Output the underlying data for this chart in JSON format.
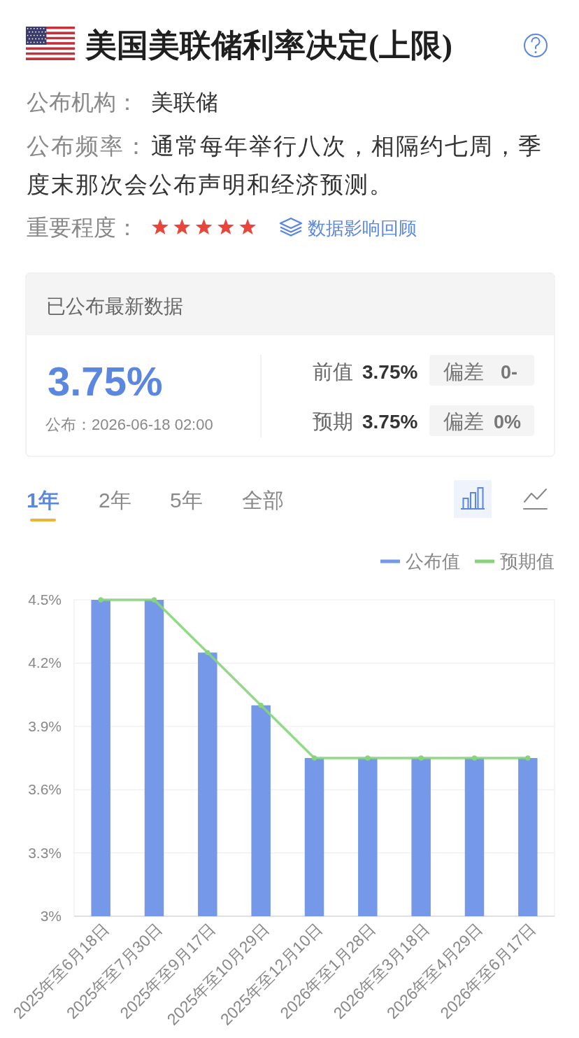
{
  "chart_data": [
    {
      "type": "other",
      "title": "美国美联储利率决定(上限)",
      "annotations": [
        "公布机构：",
        "美联储",
        "公布频率：通常每年举行八次，相隔约七周，季度末那次会公布声明和经济预测。",
        "重要程度：",
        "数据影响回顾",
        "已公布最新数据",
        "3.75%",
        "公布：2026-06-18 02:00",
        "前值",
        "3.75%",
        "偏差",
        "0-",
        "预期",
        "3.75%",
        "偏差",
        "0%",
        "1年",
        "2年",
        "5年",
        "全部"
      ]
    },
    {
      "type": "bar",
      "categories": [
        "2025年至6月18日",
        "2025年至7月30日",
        "2025年至9月17日",
        "2025年至10月29日",
        "2025年至12月10日",
        "2026年至1月28日",
        "2026年至3月18日",
        "2026年至4月29日",
        "2026年至6月17日"
      ],
      "series": [
        {
          "name": "公布值",
          "type": "bar",
          "color": "#7599e8",
          "values": [
            4.5,
            4.5,
            4.25,
            4.0,
            3.75,
            3.75,
            3.75,
            3.75,
            3.75
          ]
        },
        {
          "name": "预期值",
          "type": "line",
          "color": "#88d47c",
          "values": [
            4.5,
            4.5,
            4.25,
            4.0,
            3.75,
            3.75,
            3.75,
            3.75,
            3.75
          ]
        }
      ],
      "ylim": [
        3,
        4.5
      ],
      "yticks": [
        {
          "value": 3,
          "label": "3%"
        },
        {
          "value": 3.3,
          "label": "3.3%"
        },
        {
          "value": 3.6,
          "label": "3.6%"
        },
        {
          "value": 3.9,
          "label": "3.9%"
        },
        {
          "value": 4.2,
          "label": "4.2%"
        },
        {
          "value": 4.5,
          "label": "4.5%"
        }
      ],
      "grid": "y",
      "legend": "top right",
      "marker": "circle"
    }
  ]
}
